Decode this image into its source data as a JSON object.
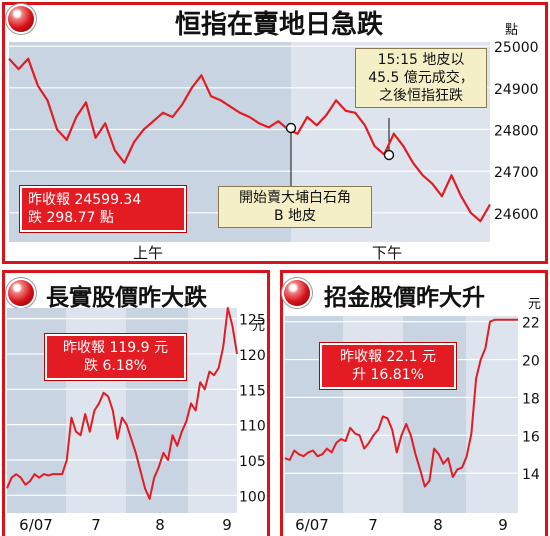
{
  "main": {
    "title": "恒指在賣地日急跌",
    "unit": "點",
    "session_am": "上午",
    "session_pm": "下午",
    "close_label": "昨收報 24599.34",
    "change_label": "跌 298.77 點",
    "note_1_line1": "開始賣大埔白石角",
    "note_1_line2": "B 地皮",
    "note_2_line1": "15:15 地皮以",
    "note_2_line2": "45.5 億元成交，",
    "note_2_line3": "之後恒指狂跌"
  },
  "left": {
    "title": "長實股價昨大跌",
    "unit": "元",
    "close_label": "昨收報 119.9 元",
    "change_label": "跌 6.18%"
  },
  "right": {
    "title": "招金股價昨大升",
    "unit": "元",
    "close_label": "昨收報 22.1 元",
    "change_label": "升 16.81%"
  },
  "chart_data": [
    {
      "type": "line",
      "title": "恒指在賣地日急跌",
      "ylabel": "點",
      "ylim": [
        24530,
        25010
      ],
      "yticks": [
        24600,
        24700,
        24800,
        24900,
        25000
      ],
      "xticks": [
        "上午",
        "下午"
      ],
      "color": "#e31b23",
      "x": [
        0,
        2,
        4,
        6,
        8,
        10,
        12,
        14,
        16,
        18,
        20,
        22,
        24,
        26,
        28,
        30,
        32,
        34,
        36,
        38,
        40,
        42,
        44,
        46,
        48,
        50,
        52,
        54,
        56,
        58,
        60,
        62,
        64,
        66,
        68,
        70,
        72,
        74,
        76,
        78,
        80,
        82,
        84,
        86,
        88,
        90,
        92,
        94,
        96,
        98,
        100
      ],
      "values": [
        24970,
        24945,
        24970,
        24905,
        24870,
        24800,
        24775,
        24830,
        24865,
        24780,
        24815,
        24750,
        24720,
        24770,
        24800,
        24820,
        24840,
        24830,
        24860,
        24900,
        24930,
        24880,
        24870,
        24855,
        24840,
        24830,
        24815,
        24805,
        24820,
        24800,
        24790,
        24830,
        24810,
        24835,
        24870,
        24845,
        24840,
        24810,
        24760,
        24740,
        24790,
        24760,
        24720,
        24690,
        24670,
        24640,
        24690,
        24640,
        24600,
        24580,
        24620
      ]
    },
    {
      "type": "line",
      "title": "長實股價昨大跌",
      "ylabel": "元",
      "ylim": [
        97.5,
        126.5
      ],
      "yticks": [
        100,
        105,
        110,
        115,
        120,
        125
      ],
      "xticks": [
        "6/07",
        "7",
        "8",
        "9"
      ],
      "color": "#e31b23",
      "x": [
        0,
        2,
        4,
        6,
        8,
        10,
        12,
        14,
        16,
        18,
        20,
        22,
        24,
        26,
        28,
        30,
        32,
        34,
        36,
        38,
        40,
        42,
        44,
        46,
        48,
        50,
        52,
        54,
        56,
        58,
        60,
        62,
        64,
        66,
        68,
        70,
        72,
        74,
        76,
        78,
        80,
        82,
        84,
        86,
        88,
        90,
        92,
        94,
        96,
        98,
        100
      ],
      "values": [
        101,
        102.5,
        103,
        102.5,
        101.5,
        102,
        103,
        102.5,
        103,
        102.8,
        103,
        103,
        103,
        105,
        111,
        109,
        108.5,
        111.5,
        109,
        112,
        113,
        114.5,
        114,
        112,
        108,
        111,
        110,
        108,
        106,
        103.5,
        101,
        99.5,
        102.5,
        104,
        106,
        105,
        108.5,
        107,
        109,
        110.5,
        113,
        112,
        116,
        115,
        117.5,
        117,
        118,
        121,
        126.5,
        124,
        120
      ]
    },
    {
      "type": "line",
      "title": "招金股價昨大升",
      "ylabel": "元",
      "ylim": [
        11.9,
        22.3
      ],
      "yticks": [
        14,
        16,
        18,
        20,
        22
      ],
      "xticks": [
        "6/07",
        "7",
        "8",
        "9"
      ],
      "color": "#e31b23",
      "x": [
        0,
        2,
        4,
        6,
        8,
        10,
        12,
        14,
        16,
        18,
        20,
        22,
        24,
        26,
        28,
        30,
        32,
        34,
        36,
        38,
        40,
        42,
        44,
        46,
        48,
        50,
        52,
        54,
        56,
        58,
        60,
        62,
        64,
        66,
        68,
        70,
        72,
        74,
        76,
        78,
        80,
        82,
        84,
        86,
        88,
        90,
        92,
        94,
        96,
        98,
        100
      ],
      "values": [
        14.8,
        14.7,
        15.2,
        15.0,
        14.9,
        15.1,
        15.2,
        14.9,
        15.0,
        15.3,
        15.1,
        15.6,
        15.8,
        15.7,
        16.4,
        16.1,
        16.0,
        15.3,
        15.6,
        16.0,
        16.3,
        17.0,
        16.9,
        16.3,
        15.1,
        16.0,
        16.6,
        16.0,
        15.0,
        14.2,
        13.3,
        13.6,
        15.3,
        15.0,
        14.5,
        14.8,
        13.8,
        14.2,
        14.3,
        14.9,
        16.1,
        19.0,
        20.0,
        20.6,
        22.0,
        22.1,
        22.1,
        22.1,
        22.1,
        22.1,
        22.1
      ]
    }
  ]
}
